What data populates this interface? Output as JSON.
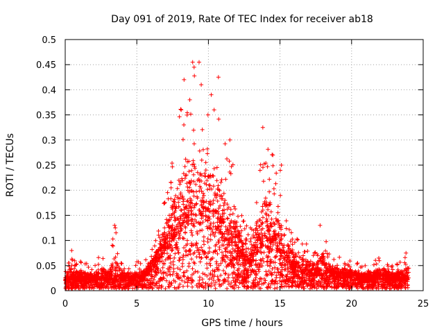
{
  "chart_data": {
    "type": "scatter",
    "title": "Day 091 of 2019, Rate Of TEC Index for receiver ab18",
    "xlabel": "GPS time / hours",
    "ylabel": "ROTI / TECUs",
    "xlim": [
      0,
      25
    ],
    "ylim": [
      0,
      0.5
    ],
    "xticks": [
      "0",
      "5",
      "10",
      "15",
      "20",
      "25"
    ],
    "yticks": [
      "0",
      "0.05",
      "0.1",
      "0.15",
      "0.2",
      "0.25",
      "0.3",
      "0.35",
      "0.4",
      "0.45",
      "0.5"
    ],
    "grid": true,
    "marker": "+",
    "series": [
      {
        "name": "ROTI",
        "color": "#ff0000",
        "profile_hours": [
          0,
          0.4,
          0.5,
          1,
          2,
          2.5,
          3,
          3.5,
          4,
          5,
          5.5,
          6,
          6.5,
          7,
          7.5,
          8,
          8.5,
          9,
          9.5,
          10,
          10.5,
          11,
          11.5,
          12,
          12.5,
          13,
          13.5,
          14,
          14.5,
          15,
          15.5,
          16,
          16.5,
          17,
          17.5,
          18,
          18.5,
          19,
          20,
          21,
          22,
          23,
          24
        ],
        "profile_peak": [
          0.04,
          0.08,
          0.06,
          0.06,
          0.05,
          0.08,
          0.06,
          0.13,
          0.05,
          0.06,
          0.06,
          0.08,
          0.12,
          0.2,
          0.26,
          0.36,
          0.42,
          0.45,
          0.41,
          0.39,
          0.42,
          0.35,
          0.3,
          0.2,
          0.15,
          0.14,
          0.24,
          0.32,
          0.28,
          0.25,
          0.15,
          0.12,
          0.1,
          0.09,
          0.08,
          0.13,
          0.08,
          0.07,
          0.06,
          0.05,
          0.07,
          0.05,
          0.08
        ],
        "profile_median": [
          0.02,
          0.02,
          0.02,
          0.02,
          0.02,
          0.02,
          0.02,
          0.02,
          0.02,
          0.02,
          0.025,
          0.04,
          0.06,
          0.08,
          0.1,
          0.12,
          0.13,
          0.14,
          0.13,
          0.12,
          0.12,
          0.11,
          0.09,
          0.07,
          0.05,
          0.05,
          0.08,
          0.1,
          0.09,
          0.07,
          0.05,
          0.04,
          0.035,
          0.03,
          0.03,
          0.03,
          0.03,
          0.025,
          0.025,
          0.02,
          0.025,
          0.02,
          0.02
        ],
        "outliers": [
          {
            "x": 0.45,
            "y": 0.08
          },
          {
            "x": 3.45,
            "y": 0.13
          },
          {
            "x": 3.5,
            "y": 0.125
          },
          {
            "x": 8.1,
            "y": 0.36
          },
          {
            "x": 8.3,
            "y": 0.42
          },
          {
            "x": 8.7,
            "y": 0.38
          },
          {
            "x": 8.9,
            "y": 0.455
          },
          {
            "x": 9.0,
            "y": 0.445
          },
          {
            "x": 9.35,
            "y": 0.455
          },
          {
            "x": 9.5,
            "y": 0.41
          },
          {
            "x": 10.2,
            "y": 0.39
          },
          {
            "x": 10.4,
            "y": 0.36
          },
          {
            "x": 10.7,
            "y": 0.425
          },
          {
            "x": 11.5,
            "y": 0.3
          },
          {
            "x": 13.8,
            "y": 0.325
          },
          {
            "x": 14.5,
            "y": 0.27
          },
          {
            "x": 15.1,
            "y": 0.25
          },
          {
            "x": 17.8,
            "y": 0.13
          },
          {
            "x": 21.9,
            "y": 0.065
          },
          {
            "x": 23.8,
            "y": 0.075
          }
        ]
      }
    ]
  }
}
